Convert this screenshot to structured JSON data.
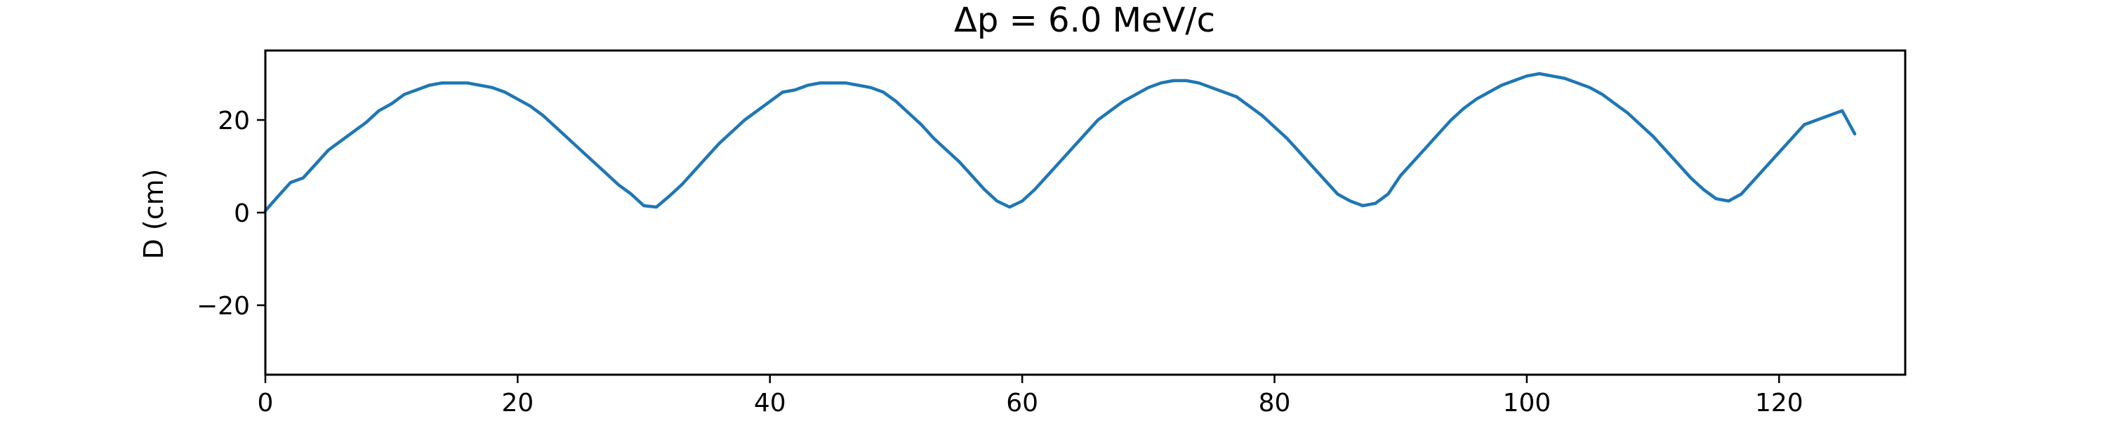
{
  "chart_data": {
    "type": "line",
    "title": "Δp = 6.0 MeV/c",
    "xlabel": "",
    "ylabel": "D (cm)",
    "xlim": [
      0,
      130
    ],
    "ylim": [
      -35,
      35
    ],
    "xticks": [
      0,
      20,
      40,
      60,
      80,
      100,
      120
    ],
    "xtick_labels": [
      "0",
      "20",
      "40",
      "60",
      "80",
      "100",
      "120"
    ],
    "yticks": [
      -20,
      0,
      20
    ],
    "ytick_labels": [
      "−20",
      "0",
      "20"
    ],
    "grid": false,
    "legend": "none",
    "series": [
      {
        "color": "#1f77b4",
        "x": [
          0,
          1,
          2,
          3,
          4,
          5,
          6,
          7,
          8,
          9,
          10,
          11,
          12,
          13,
          14,
          15,
          16,
          17,
          18,
          19,
          20,
          21,
          22,
          23,
          24,
          25,
          26,
          27,
          28,
          29,
          30,
          31,
          32,
          33,
          34,
          35,
          36,
          37,
          38,
          39,
          40,
          41,
          42,
          43,
          44,
          45,
          46,
          47,
          48,
          49,
          50,
          51,
          52,
          53,
          54,
          55,
          56,
          57,
          58,
          59,
          60,
          61,
          62,
          63,
          64,
          65,
          66,
          67,
          68,
          69,
          70,
          71,
          72,
          73,
          74,
          75,
          76,
          77,
          78,
          79,
          80,
          81,
          82,
          83,
          84,
          85,
          86,
          87,
          88,
          89,
          90,
          91,
          92,
          93,
          94,
          95,
          96,
          97,
          98,
          99,
          100,
          101,
          102,
          103,
          104,
          105,
          106,
          107,
          108,
          109,
          110,
          111,
          112,
          113,
          114,
          115,
          116,
          117,
          118,
          119,
          120,
          121,
          122,
          123,
          124,
          125,
          126
        ],
        "y": [
          0.4,
          3.5,
          6.5,
          7.5,
          10.5,
          13.5,
          15.5,
          17.5,
          19.5,
          22,
          23.5,
          25.5,
          26.5,
          27.5,
          28,
          28,
          28,
          27.5,
          27,
          26,
          24.5,
          23,
          21,
          18.5,
          16,
          13.5,
          11,
          8.5,
          6,
          4,
          1.5,
          1.2,
          3.5,
          6,
          9,
          12,
          15,
          17.5,
          20,
          22,
          24,
          26,
          26.5,
          27.5,
          28,
          28,
          28,
          27.5,
          27,
          26,
          24,
          21.5,
          19,
          16,
          13.5,
          11,
          8,
          5,
          2.5,
          1.2,
          2.5,
          5,
          8,
          11,
          14,
          17,
          20,
          22,
          24,
          25.5,
          27,
          28,
          28.5,
          28.5,
          28,
          27,
          26,
          25,
          23,
          21,
          18.5,
          16,
          13,
          10,
          7,
          4,
          2.5,
          1.5,
          2,
          4,
          8,
          11,
          14,
          17,
          20,
          22.5,
          24.5,
          26,
          27.5,
          28.5,
          29.5,
          30,
          29.5,
          29,
          28,
          27,
          25.5,
          23.5,
          21.5,
          19,
          16.5,
          13.5,
          10.5,
          7.5,
          5,
          3,
          2.5,
          4,
          7,
          10,
          13,
          16,
          19,
          20,
          21,
          22,
          17
        ]
      }
    ]
  }
}
